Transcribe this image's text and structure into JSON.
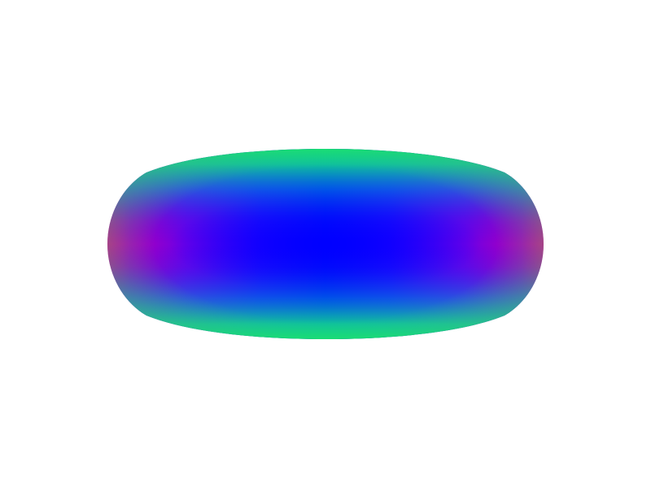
{
  "scene": {
    "background_color": "#ffffff",
    "object": {
      "shape": "oblate-spheroid",
      "shading": "normal-map",
      "colors": {
        "center": "#0000ff",
        "equator_tips": "#e0008a",
        "rim": "#10e870",
        "mid_cyan": "#0080e0",
        "mid_purple": "#7000e0"
      }
    }
  }
}
